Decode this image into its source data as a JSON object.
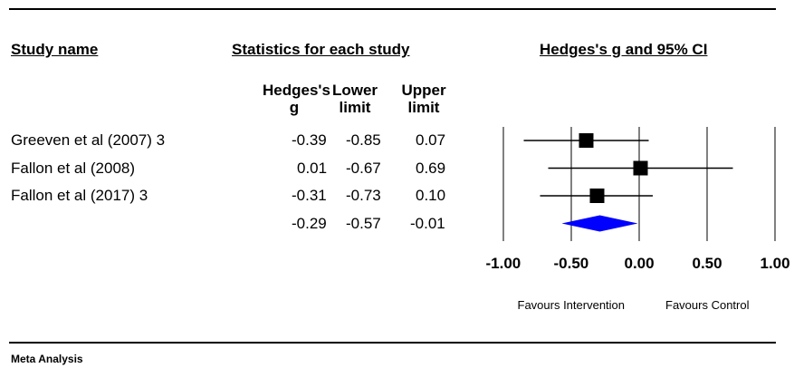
{
  "chart_data": {
    "type": "forest",
    "columns_title": "Statistics for each study",
    "categories_title": "Study name",
    "plot_title": "Hedges's g and 95% CI",
    "categories": [
      "Greeven et al (2007) 3",
      "Fallon et al (2008)",
      "Fallon et al (2017) 3",
      null
    ],
    "series": [
      {
        "name": "Hedges's g",
        "values": [
          -0.39,
          0.01,
          -0.31,
          -0.29
        ]
      },
      {
        "name": "Lower limit",
        "values": [
          -0.85,
          -0.67,
          -0.73,
          -0.57
        ]
      },
      {
        "name": "Upper limit",
        "values": [
          0.07,
          0.69,
          0.1,
          -0.01
        ],
        "value_labels": [
          "0.07",
          "0.69",
          "0.10",
          "-0.01"
        ]
      }
    ],
    "xlim": [
      -1,
      1
    ],
    "xticks": [
      {
        "value": -1,
        "label": "-1.00"
      },
      {
        "value": -0.5,
        "label": "-0.50"
      },
      {
        "value": 0,
        "label": "0.00"
      },
      {
        "value": 0.5,
        "label": "0.50"
      },
      {
        "value": 1,
        "label": "1.00"
      }
    ],
    "xlabel_left": "Favours Intervention",
    "xlabel_right": "Favours Control",
    "marker_color": "#000000",
    "summary_color": "#0000ff",
    "footer": "Meta Analysis"
  }
}
